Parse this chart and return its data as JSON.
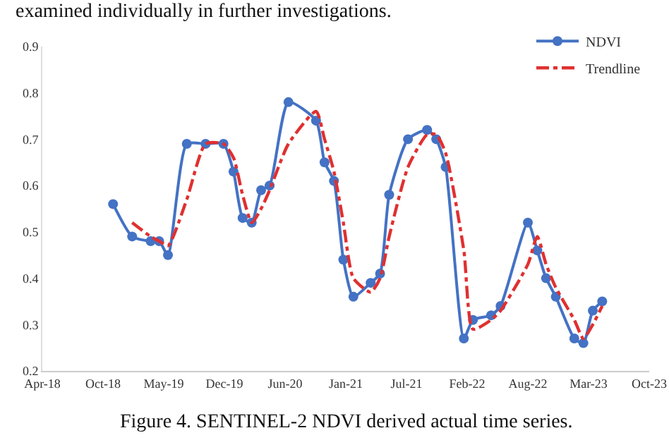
{
  "chart_data": {
    "type": "line",
    "annotations": [
      "examined individually in further investigations.",
      "Figure 4. SENTINEL-2 NDVI derived actual time series."
    ],
    "xlim": [
      "2018-04-10",
      "2023-10-01"
    ],
    "xticks": [
      {
        "value": "2018-04-10",
        "label": "Apr-18"
      },
      {
        "value": "2018-10-27",
        "label": "Oct-18"
      },
      {
        "value": "2019-05-15",
        "label": "May-19"
      },
      {
        "value": "2019-12-01",
        "label": "Dec-19"
      },
      {
        "value": "2020-06-18",
        "label": "Jun-20"
      },
      {
        "value": "2021-01-04",
        "label": "Jan-21"
      },
      {
        "value": "2021-07-23",
        "label": "Jul-21"
      },
      {
        "value": "2022-02-08",
        "label": "Feb-22"
      },
      {
        "value": "2022-08-27",
        "label": "Aug-22"
      },
      {
        "value": "2023-03-15",
        "label": "Mar-23"
      },
      {
        "value": "2023-10-01",
        "label": "Oct-23"
      }
    ],
    "ylim": [
      0.2,
      0.9
    ],
    "yticks": [
      0.2,
      0.3,
      0.4,
      0.5,
      0.6,
      0.7,
      0.8,
      0.9
    ],
    "grid": false,
    "legend": "top right",
    "series": [
      {
        "name": "NDVI",
        "color": "#4472c4",
        "marker": "circle",
        "line_style": "solid",
        "x": [
          "2018-11-29",
          "2019-01-31",
          "2019-04-02",
          "2019-04-30",
          "2019-05-29",
          "2019-07-30",
          "2019-09-30",
          "2019-11-28",
          "2019-12-31",
          "2020-01-30",
          "2020-02-29",
          "2020-03-31",
          "2020-04-28",
          "2020-06-29",
          "2020-09-28",
          "2020-10-26",
          "2020-11-26",
          "2020-12-27",
          "2021-01-29",
          "2021-03-27",
          "2021-04-27",
          "2021-05-27",
          "2021-07-28",
          "2021-09-29",
          "2021-10-29",
          "2021-11-29",
          "2022-01-28",
          "2022-02-27",
          "2022-04-28",
          "2022-05-29",
          "2022-08-27",
          "2022-09-27",
          "2022-10-26",
          "2022-11-27",
          "2023-01-27",
          "2023-02-26",
          "2023-03-29",
          "2023-04-29"
        ],
        "values": [
          0.56,
          0.49,
          0.48,
          0.48,
          0.45,
          0.69,
          0.69,
          0.69,
          0.63,
          0.53,
          0.52,
          0.59,
          0.6,
          0.78,
          0.74,
          0.65,
          0.61,
          0.44,
          0.36,
          0.39,
          0.41,
          0.58,
          0.7,
          0.72,
          0.7,
          0.64,
          0.27,
          0.31,
          0.32,
          0.34,
          0.52,
          0.46,
          0.4,
          0.36,
          0.27,
          0.26,
          0.33,
          0.35
        ]
      },
      {
        "name": "Trendline",
        "color": "#e03030",
        "marker": "none",
        "line_style": "dashed",
        "x": [
          "2019-01-31",
          "2019-04-02",
          "2019-04-30",
          "2019-05-29",
          "2019-07-30",
          "2019-09-30",
          "2019-11-28",
          "2019-12-31",
          "2020-01-30",
          "2020-02-29",
          "2020-03-31",
          "2020-04-28",
          "2020-06-29",
          "2020-09-28",
          "2020-10-26",
          "2020-11-26",
          "2020-12-27",
          "2021-01-29",
          "2021-03-27",
          "2021-04-27",
          "2021-05-27",
          "2021-07-28",
          "2021-09-29",
          "2021-10-29",
          "2021-11-29",
          "2022-01-28",
          "2022-02-27",
          "2022-04-28",
          "2022-05-29",
          "2022-08-27",
          "2022-09-27",
          "2022-10-26",
          "2022-11-27",
          "2023-01-27",
          "2023-02-26",
          "2023-03-29",
          "2023-04-29"
        ],
        "values": [
          0.52,
          0.49,
          0.48,
          0.47,
          0.57,
          0.69,
          0.69,
          0.66,
          0.58,
          0.52,
          0.55,
          0.59,
          0.69,
          0.76,
          0.7,
          0.63,
          0.52,
          0.4,
          0.37,
          0.4,
          0.49,
          0.64,
          0.71,
          0.71,
          0.67,
          0.46,
          0.29,
          0.31,
          0.33,
          0.43,
          0.49,
          0.43,
          0.38,
          0.31,
          0.27,
          0.3,
          0.34
        ]
      }
    ]
  }
}
